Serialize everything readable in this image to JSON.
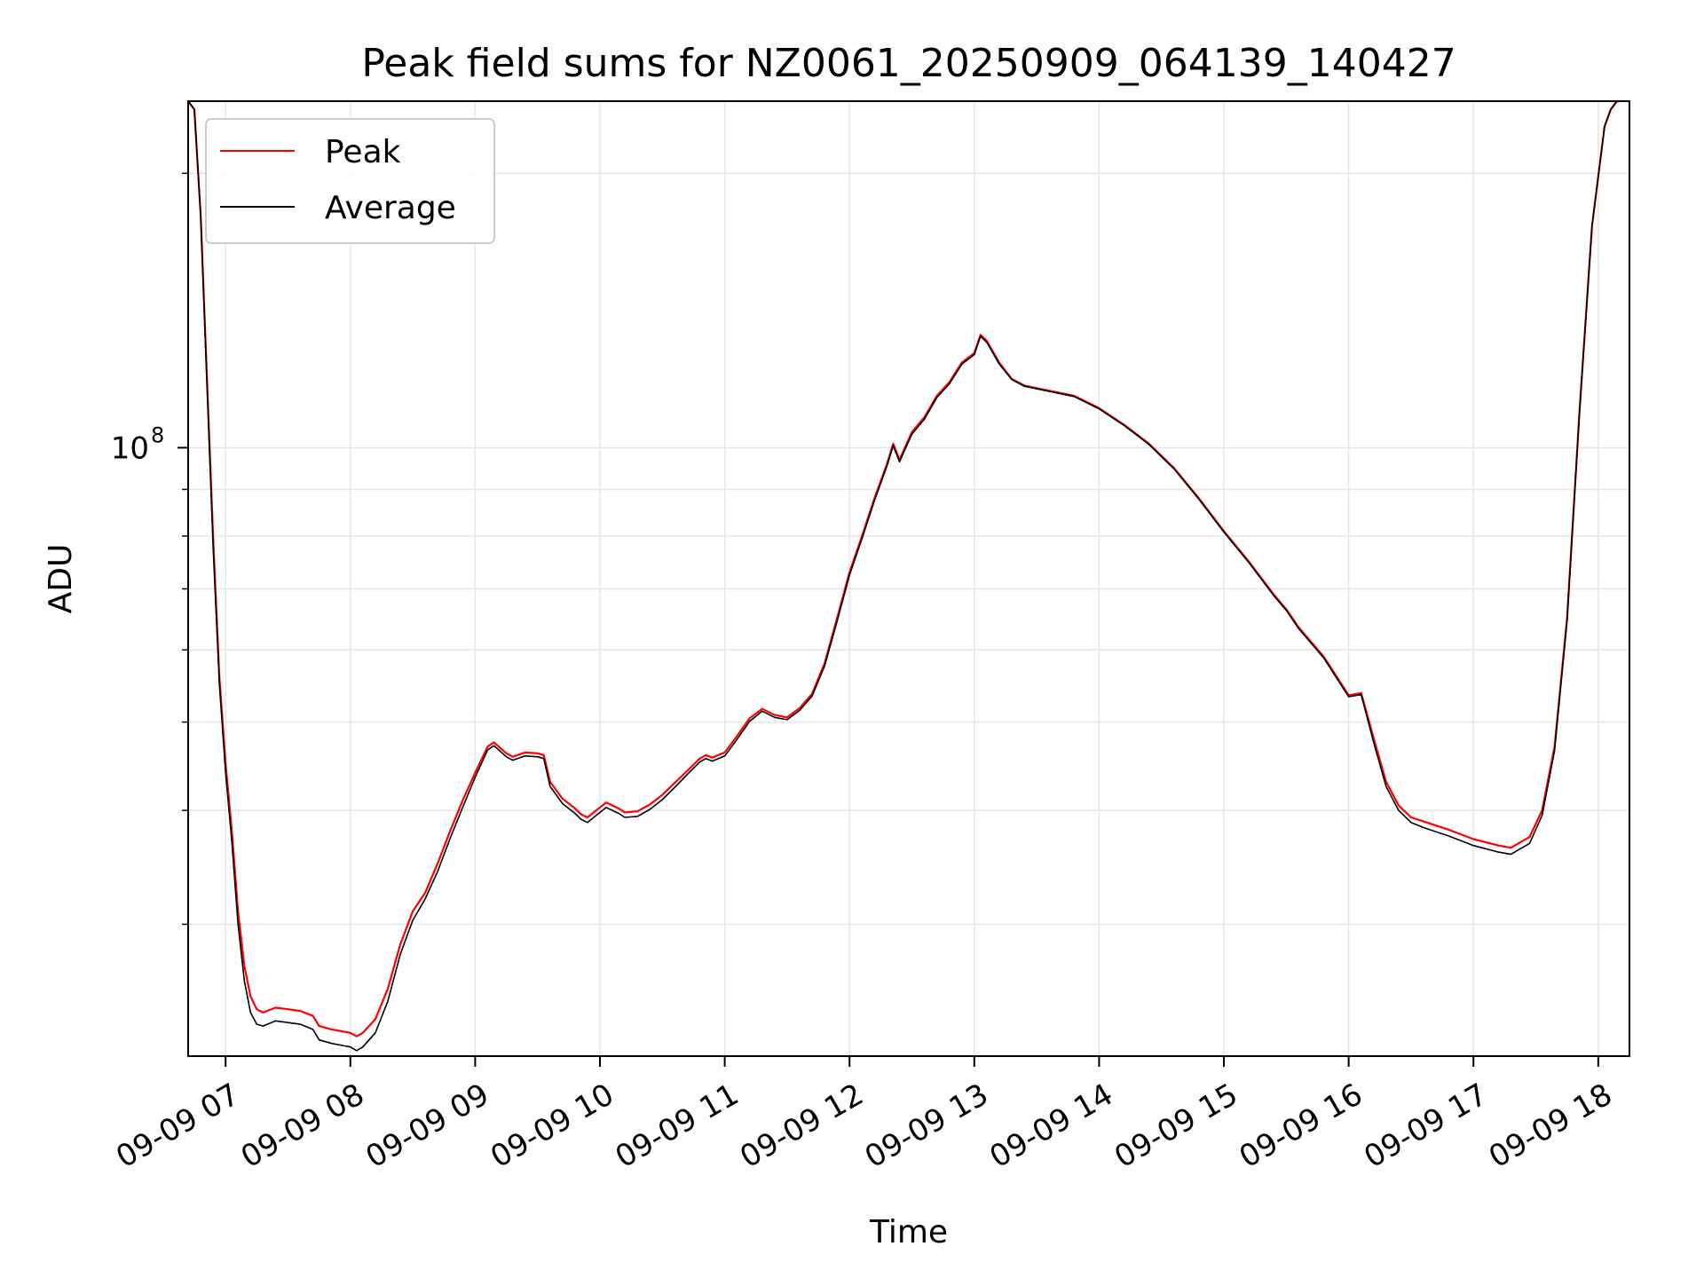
{
  "chart_data": {
    "type": "line",
    "title": "Peak field sums for NZ0061_20250909_064139_140427",
    "xlabel": "Time",
    "ylabel": "ADU",
    "yscale": "log",
    "grid": true,
    "legend_placement": "top-left",
    "xlim": [
      6.7,
      18.25
    ],
    "ylim": [
      21500000,
      240000000
    ],
    "x_ticks": [
      7,
      8,
      9,
      10,
      11,
      12,
      13,
      14,
      15,
      16,
      17,
      18
    ],
    "x_tick_labels": [
      "09-09 07",
      "09-09 08",
      "09-09 09",
      "09-09 10",
      "09-09 11",
      "09-09 12",
      "09-09 13",
      "09-09 14",
      "09-09 15",
      "09-09 16",
      "09-09 17",
      "09-09 18"
    ],
    "y_major_ticks": [
      100000000
    ],
    "y_major_tick_labels": [
      "10",
      "8"
    ],
    "y_minor_ticks": [
      30000000,
      40000000,
      50000000,
      60000000,
      70000000,
      80000000,
      90000000,
      200000000
    ],
    "series": [
      {
        "name": "Peak",
        "color": "#ff0000",
        "x": [
          6.7,
          6.75,
          6.8,
          6.85,
          6.9,
          6.95,
          7.0,
          7.05,
          7.1,
          7.15,
          7.2,
          7.25,
          7.3,
          7.4,
          7.5,
          7.6,
          7.7,
          7.75,
          7.85,
          8.0,
          8.05,
          8.1,
          8.2,
          8.3,
          8.4,
          8.5,
          8.6,
          8.7,
          8.8,
          8.9,
          9.0,
          9.1,
          9.15,
          9.25,
          9.3,
          9.4,
          9.5,
          9.55,
          9.6,
          9.7,
          9.8,
          9.85,
          9.9,
          10.0,
          10.05,
          10.15,
          10.2,
          10.3,
          10.4,
          10.5,
          10.6,
          10.7,
          10.8,
          10.85,
          10.9,
          11.0,
          11.1,
          11.2,
          11.3,
          11.4,
          11.5,
          11.6,
          11.7,
          11.8,
          11.9,
          12.0,
          12.1,
          12.2,
          12.3,
          12.35,
          12.4,
          12.5,
          12.6,
          12.7,
          12.8,
          12.9,
          13.0,
          13.05,
          13.1,
          13.2,
          13.3,
          13.4,
          13.6,
          13.8,
          14.0,
          14.2,
          14.4,
          14.6,
          14.8,
          15.0,
          15.2,
          15.4,
          15.5,
          15.6,
          15.8,
          16.0,
          16.1,
          16.2,
          16.3,
          16.4,
          16.5,
          16.6,
          16.8,
          17.0,
          17.2,
          17.3,
          17.45,
          17.55,
          17.65,
          17.75,
          17.85,
          17.95,
          18.05,
          18.1,
          18.15,
          18.2
        ],
        "values": [
          240000000,
          235000000,
          180000000,
          120000000,
          80000000,
          56000000,
          45000000,
          38000000,
          31000000,
          27000000,
          25000000,
          24200000,
          24000000,
          24300000,
          24200000,
          24100000,
          23800000,
          23200000,
          23000000,
          22800000,
          22600000,
          22800000,
          23600000,
          25500000,
          28500000,
          31000000,
          32500000,
          35000000,
          38000000,
          41000000,
          44000000,
          47000000,
          47500000,
          46200000,
          45800000,
          46300000,
          46200000,
          46000000,
          43000000,
          41200000,
          40200000,
          39600000,
          39300000,
          40300000,
          40800000,
          40200000,
          39800000,
          39900000,
          40600000,
          41600000,
          42900000,
          44200000,
          45600000,
          46000000,
          45700000,
          46300000,
          48300000,
          50500000,
          51700000,
          50900000,
          50600000,
          51800000,
          53700000,
          58000000,
          65000000,
          73000000,
          80000000,
          88000000,
          96000000,
          101000000,
          97000000,
          104000000,
          108000000,
          114000000,
          118000000,
          124000000,
          127000000,
          133000000,
          131000000,
          124000000,
          119000000,
          117000000,
          115500000,
          114000000,
          110500000,
          106000000,
          101000000,
          95000000,
          88000000,
          81000000,
          75000000,
          69000000,
          66500000,
          63500000,
          59000000,
          53500000,
          53800000,
          48000000,
          43000000,
          40500000,
          39300000,
          38900000,
          38100000,
          37200000,
          36600000,
          36400000,
          37400000,
          40000000,
          47000000,
          65000000,
          110000000,
          175000000,
          225000000,
          235000000,
          240000000,
          240000000
        ]
      },
      {
        "name": "Average",
        "color": "#000000",
        "x": [
          6.7,
          6.75,
          6.8,
          6.85,
          6.9,
          6.95,
          7.0,
          7.05,
          7.1,
          7.15,
          7.2,
          7.25,
          7.3,
          7.4,
          7.5,
          7.6,
          7.7,
          7.75,
          7.85,
          8.0,
          8.05,
          8.1,
          8.2,
          8.3,
          8.4,
          8.5,
          8.6,
          8.7,
          8.8,
          8.9,
          9.0,
          9.1,
          9.15,
          9.25,
          9.3,
          9.4,
          9.5,
          9.55,
          9.6,
          9.7,
          9.8,
          9.85,
          9.9,
          10.0,
          10.05,
          10.15,
          10.2,
          10.3,
          10.4,
          10.5,
          10.6,
          10.7,
          10.8,
          10.85,
          10.9,
          11.0,
          11.1,
          11.2,
          11.3,
          11.4,
          11.5,
          11.6,
          11.7,
          11.8,
          11.9,
          12.0,
          12.1,
          12.2,
          12.3,
          12.35,
          12.4,
          12.5,
          12.6,
          12.7,
          12.8,
          12.9,
          13.0,
          13.05,
          13.1,
          13.2,
          13.3,
          13.4,
          13.6,
          13.8,
          14.0,
          14.2,
          14.4,
          14.6,
          14.8,
          15.0,
          15.2,
          15.4,
          15.5,
          15.6,
          15.8,
          16.0,
          16.1,
          16.2,
          16.3,
          16.4,
          16.5,
          16.6,
          16.8,
          17.0,
          17.2,
          17.3,
          17.45,
          17.55,
          17.65,
          17.75,
          17.85,
          17.95,
          18.05,
          18.1,
          18.15,
          18.2
        ],
        "values": [
          240000000,
          235000000,
          180000000,
          118000000,
          78000000,
          55000000,
          44000000,
          37000000,
          30000000,
          26000000,
          24000000,
          23300000,
          23200000,
          23500000,
          23400000,
          23300000,
          23000000,
          22400000,
          22200000,
          22000000,
          21800000,
          22000000,
          22800000,
          24700000,
          27800000,
          30300000,
          32000000,
          34300000,
          37300000,
          40300000,
          43500000,
          46600000,
          47100000,
          45800000,
          45400000,
          45900000,
          45800000,
          45600000,
          42500000,
          40700000,
          39700000,
          39100000,
          38800000,
          39800000,
          40300000,
          39700000,
          39300000,
          39400000,
          40100000,
          41100000,
          42400000,
          43800000,
          45200000,
          45600000,
          45300000,
          45900000,
          47900000,
          50100000,
          51400000,
          50600000,
          50300000,
          51500000,
          53400000,
          57600000,
          64500000,
          72500000,
          79500000,
          87500000,
          95500000,
          100500000,
          96500000,
          103500000,
          107500000,
          113500000,
          117500000,
          123500000,
          126500000,
          132500000,
          130500000,
          123500000,
          118800000,
          116800000,
          115300000,
          113800000,
          110300000,
          105800000,
          100800000,
          94800000,
          87800000,
          80800000,
          74800000,
          68800000,
          66300000,
          63300000,
          58800000,
          53300000,
          53600000,
          47500000,
          42500000,
          40000000,
          38800000,
          38300000,
          37500000,
          36600000,
          36000000,
          35800000,
          36800000,
          39500000,
          46500000,
          64500000,
          109500000,
          175000000,
          225000000,
          235000000,
          240000000,
          240000000
        ]
      }
    ]
  }
}
